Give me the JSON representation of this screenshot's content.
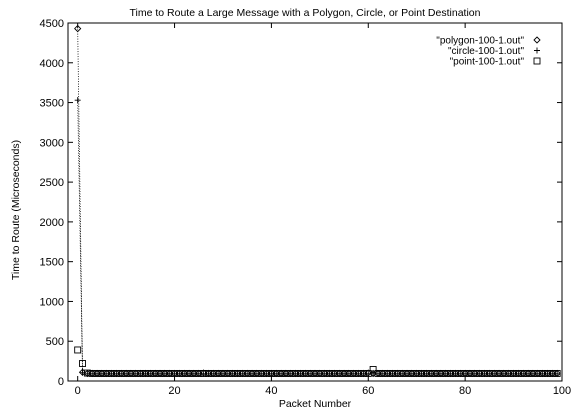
{
  "chart_data": {
    "type": "scatter",
    "title": "Time to Route a Large Message with a Polygon, Circle, or Point Destination",
    "xlabel": "Packet Number",
    "ylabel": "Time to Route (Microseconds)",
    "xlim": [
      -2,
      100
    ],
    "ylim": [
      0,
      4500
    ],
    "xticks": [
      0,
      20,
      40,
      60,
      80,
      100
    ],
    "yticks": [
      0,
      500,
      1000,
      1500,
      2000,
      2500,
      3000,
      3500,
      4000,
      4500
    ],
    "legend_position": "top-right",
    "series": [
      {
        "name": "\"polygon-100-1.out\"",
        "marker": "diamond",
        "connected_first_segment": true,
        "points": [
          [
            0,
            4430
          ],
          [
            1,
            110
          ],
          [
            2,
            95
          ],
          [
            3,
            95
          ],
          [
            4,
            95
          ],
          [
            5,
            95
          ],
          [
            6,
            95
          ],
          [
            7,
            95
          ],
          [
            8,
            95
          ],
          [
            9,
            95
          ],
          [
            10,
            95
          ],
          [
            11,
            95
          ],
          [
            12,
            95
          ],
          [
            13,
            95
          ],
          [
            14,
            95
          ],
          [
            15,
            95
          ],
          [
            16,
            95
          ],
          [
            17,
            95
          ],
          [
            18,
            95
          ],
          [
            19,
            95
          ],
          [
            20,
            95
          ],
          [
            21,
            95
          ],
          [
            22,
            95
          ],
          [
            23,
            95
          ],
          [
            24,
            95
          ],
          [
            25,
            95
          ],
          [
            26,
            100
          ],
          [
            27,
            95
          ],
          [
            28,
            95
          ],
          [
            29,
            95
          ],
          [
            30,
            95
          ],
          [
            31,
            95
          ],
          [
            32,
            95
          ],
          [
            33,
            95
          ],
          [
            34,
            95
          ],
          [
            35,
            95
          ],
          [
            36,
            95
          ],
          [
            37,
            95
          ],
          [
            38,
            95
          ],
          [
            39,
            95
          ],
          [
            40,
            95
          ],
          [
            41,
            95
          ],
          [
            42,
            95
          ],
          [
            43,
            95
          ],
          [
            44,
            95
          ],
          [
            45,
            95
          ],
          [
            46,
            95
          ],
          [
            47,
            95
          ],
          [
            48,
            95
          ],
          [
            49,
            95
          ],
          [
            50,
            95
          ],
          [
            51,
            95
          ],
          [
            52,
            95
          ],
          [
            53,
            95
          ],
          [
            54,
            95
          ],
          [
            55,
            95
          ],
          [
            56,
            95
          ],
          [
            57,
            95
          ],
          [
            58,
            95
          ],
          [
            59,
            95
          ],
          [
            60,
            100
          ],
          [
            61,
            95
          ],
          [
            62,
            95
          ],
          [
            63,
            95
          ],
          [
            64,
            95
          ],
          [
            65,
            95
          ],
          [
            66,
            95
          ],
          [
            67,
            95
          ],
          [
            68,
            95
          ],
          [
            69,
            95
          ],
          [
            70,
            95
          ],
          [
            71,
            95
          ],
          [
            72,
            95
          ],
          [
            73,
            95
          ],
          [
            74,
            95
          ],
          [
            75,
            95
          ],
          [
            76,
            95
          ],
          [
            77,
            95
          ],
          [
            78,
            95
          ],
          [
            79,
            95
          ],
          [
            80,
            95
          ],
          [
            81,
            95
          ],
          [
            82,
            95
          ],
          [
            83,
            95
          ],
          [
            84,
            95
          ],
          [
            85,
            95
          ],
          [
            86,
            95
          ],
          [
            87,
            95
          ],
          [
            88,
            95
          ],
          [
            89,
            95
          ],
          [
            90,
            95
          ],
          [
            91,
            95
          ],
          [
            92,
            95
          ],
          [
            93,
            95
          ],
          [
            94,
            95
          ],
          [
            95,
            95
          ],
          [
            96,
            95
          ],
          [
            97,
            95
          ],
          [
            98,
            95
          ],
          [
            99,
            95
          ]
        ]
      },
      {
        "name": "\"circle-100-1.out\"",
        "marker": "plus",
        "connected_first_segment": true,
        "points": [
          [
            0,
            3530
          ],
          [
            1,
            105
          ],
          [
            2,
            90
          ],
          [
            3,
            90
          ],
          [
            4,
            90
          ],
          [
            5,
            90
          ],
          [
            6,
            90
          ],
          [
            7,
            90
          ],
          [
            8,
            90
          ],
          [
            9,
            90
          ],
          [
            10,
            90
          ],
          [
            11,
            90
          ],
          [
            12,
            90
          ],
          [
            13,
            90
          ],
          [
            14,
            90
          ],
          [
            15,
            90
          ],
          [
            16,
            90
          ],
          [
            17,
            90
          ],
          [
            18,
            90
          ],
          [
            19,
            90
          ],
          [
            20,
            90
          ],
          [
            21,
            90
          ],
          [
            22,
            90
          ],
          [
            23,
            90
          ],
          [
            24,
            90
          ],
          [
            25,
            90
          ],
          [
            26,
            90
          ],
          [
            27,
            90
          ],
          [
            28,
            90
          ],
          [
            29,
            90
          ],
          [
            30,
            90
          ],
          [
            31,
            90
          ],
          [
            32,
            90
          ],
          [
            33,
            90
          ],
          [
            34,
            90
          ],
          [
            35,
            90
          ],
          [
            36,
            90
          ],
          [
            37,
            90
          ],
          [
            38,
            90
          ],
          [
            39,
            90
          ],
          [
            40,
            90
          ],
          [
            41,
            90
          ],
          [
            42,
            90
          ],
          [
            43,
            90
          ],
          [
            44,
            90
          ],
          [
            45,
            90
          ],
          [
            46,
            90
          ],
          [
            47,
            90
          ],
          [
            48,
            90
          ],
          [
            49,
            90
          ],
          [
            50,
            90
          ],
          [
            51,
            90
          ],
          [
            52,
            90
          ],
          [
            53,
            90
          ],
          [
            54,
            90
          ],
          [
            55,
            90
          ],
          [
            56,
            90
          ],
          [
            57,
            90
          ],
          [
            58,
            90
          ],
          [
            59,
            90
          ],
          [
            60,
            90
          ],
          [
            61,
            90
          ],
          [
            62,
            90
          ],
          [
            63,
            90
          ],
          [
            64,
            90
          ],
          [
            65,
            90
          ],
          [
            66,
            90
          ],
          [
            67,
            90
          ],
          [
            68,
            90
          ],
          [
            69,
            90
          ],
          [
            70,
            90
          ],
          [
            71,
            90
          ],
          [
            72,
            90
          ],
          [
            73,
            90
          ],
          [
            74,
            90
          ],
          [
            75,
            90
          ],
          [
            76,
            90
          ],
          [
            77,
            90
          ],
          [
            78,
            90
          ],
          [
            79,
            90
          ],
          [
            80,
            90
          ],
          [
            81,
            90
          ],
          [
            82,
            90
          ],
          [
            83,
            90
          ],
          [
            84,
            90
          ],
          [
            85,
            90
          ],
          [
            86,
            90
          ],
          [
            87,
            90
          ],
          [
            88,
            90
          ],
          [
            89,
            90
          ],
          [
            90,
            90
          ],
          [
            91,
            90
          ],
          [
            92,
            90
          ],
          [
            93,
            90
          ],
          [
            94,
            90
          ],
          [
            95,
            90
          ],
          [
            96,
            90
          ],
          [
            97,
            90
          ],
          [
            98,
            90
          ],
          [
            99,
            90
          ]
        ]
      },
      {
        "name": "\"point-100-1.out\"",
        "marker": "square",
        "connected_first_segment": false,
        "points": [
          [
            0,
            390
          ],
          [
            1,
            220
          ],
          [
            2,
            100
          ],
          [
            3,
            95
          ],
          [
            4,
            95
          ],
          [
            5,
            95
          ],
          [
            6,
            95
          ],
          [
            7,
            95
          ],
          [
            8,
            95
          ],
          [
            9,
            95
          ],
          [
            10,
            95
          ],
          [
            11,
            95
          ],
          [
            12,
            95
          ],
          [
            13,
            95
          ],
          [
            14,
            95
          ],
          [
            15,
            95
          ],
          [
            16,
            95
          ],
          [
            17,
            95
          ],
          [
            18,
            95
          ],
          [
            19,
            95
          ],
          [
            20,
            95
          ],
          [
            21,
            95
          ],
          [
            22,
            95
          ],
          [
            23,
            95
          ],
          [
            24,
            95
          ],
          [
            25,
            95
          ],
          [
            26,
            95
          ],
          [
            27,
            95
          ],
          [
            28,
            95
          ],
          [
            29,
            95
          ],
          [
            30,
            95
          ],
          [
            31,
            95
          ],
          [
            32,
            95
          ],
          [
            33,
            95
          ],
          [
            34,
            95
          ],
          [
            35,
            95
          ],
          [
            36,
            95
          ],
          [
            37,
            95
          ],
          [
            38,
            95
          ],
          [
            39,
            95
          ],
          [
            40,
            95
          ],
          [
            41,
            95
          ],
          [
            42,
            95
          ],
          [
            43,
            95
          ],
          [
            44,
            95
          ],
          [
            45,
            95
          ],
          [
            46,
            95
          ],
          [
            47,
            95
          ],
          [
            48,
            95
          ],
          [
            49,
            95
          ],
          [
            50,
            95
          ],
          [
            51,
            95
          ],
          [
            52,
            95
          ],
          [
            53,
            95
          ],
          [
            54,
            95
          ],
          [
            55,
            95
          ],
          [
            56,
            95
          ],
          [
            57,
            95
          ],
          [
            58,
            95
          ],
          [
            59,
            95
          ],
          [
            60,
            95
          ],
          [
            61,
            145
          ],
          [
            62,
            95
          ],
          [
            63,
            95
          ],
          [
            64,
            95
          ],
          [
            65,
            95
          ],
          [
            66,
            95
          ],
          [
            67,
            95
          ],
          [
            68,
            95
          ],
          [
            69,
            95
          ],
          [
            70,
            95
          ],
          [
            71,
            95
          ],
          [
            72,
            95
          ],
          [
            73,
            95
          ],
          [
            74,
            95
          ],
          [
            75,
            95
          ],
          [
            76,
            95
          ],
          [
            77,
            95
          ],
          [
            78,
            95
          ],
          [
            79,
            95
          ],
          [
            80,
            95
          ],
          [
            81,
            95
          ],
          [
            82,
            95
          ],
          [
            83,
            95
          ],
          [
            84,
            95
          ],
          [
            85,
            95
          ],
          [
            86,
            95
          ],
          [
            87,
            95
          ],
          [
            88,
            95
          ],
          [
            89,
            95
          ],
          [
            90,
            95
          ],
          [
            91,
            95
          ],
          [
            92,
            95
          ],
          [
            93,
            95
          ],
          [
            94,
            95
          ],
          [
            95,
            95
          ],
          [
            96,
            95
          ],
          [
            97,
            95
          ],
          [
            98,
            95
          ],
          [
            99,
            95
          ]
        ]
      }
    ]
  }
}
